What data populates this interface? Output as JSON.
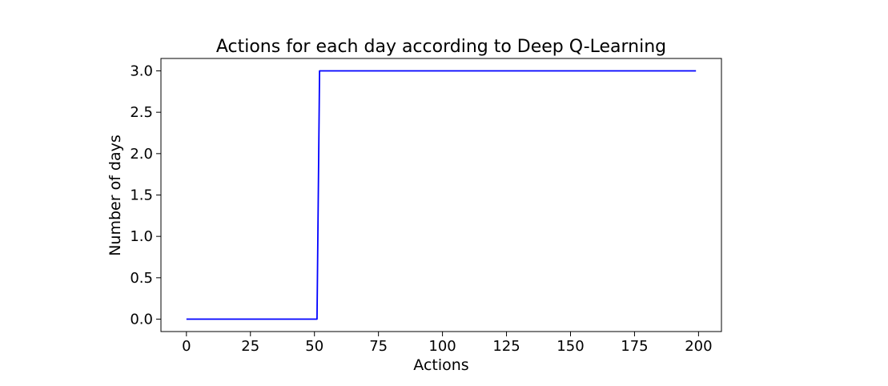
{
  "chart_data": {
    "type": "line",
    "title": "Actions for each day according to Deep Q-Learning",
    "xlabel": "Actions",
    "ylabel": "Number of days",
    "xlim": [
      -9.95,
      208.95
    ],
    "ylim": [
      -0.15,
      3.15
    ],
    "xticks": [
      0,
      25,
      50,
      75,
      100,
      125,
      150,
      175,
      200
    ],
    "xtick_labels": [
      "0",
      "25",
      "50",
      "75",
      "100",
      "125",
      "150",
      "175",
      "200"
    ],
    "yticks": [
      0.0,
      0.5,
      1.0,
      1.5,
      2.0,
      2.5,
      3.0
    ],
    "ytick_labels": [
      "0.0",
      "0.5",
      "1.0",
      "1.5",
      "2.0",
      "2.5",
      "3.0"
    ],
    "grid": false,
    "legend": "none",
    "series": [
      {
        "color": "#0000ff",
        "x": [
          0,
          51,
          52,
          199
        ],
        "y": [
          0,
          0,
          3,
          3
        ]
      }
    ]
  }
}
